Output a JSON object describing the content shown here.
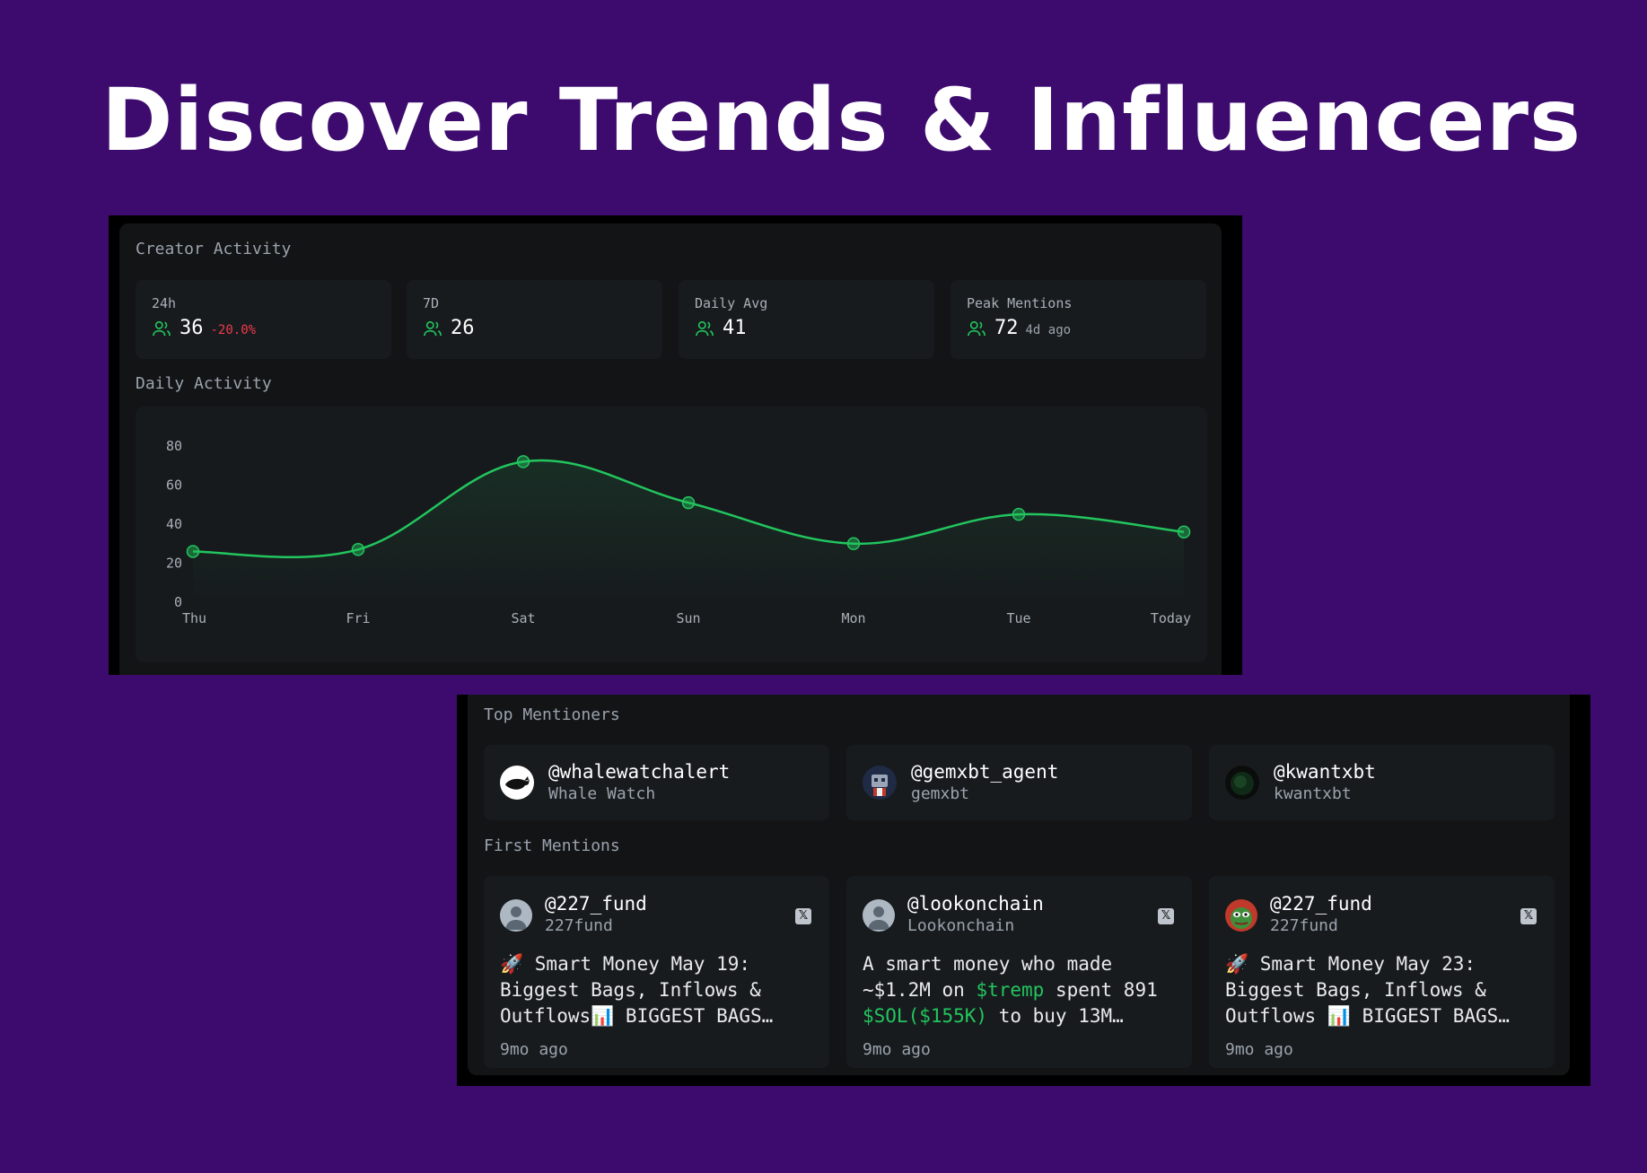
{
  "hero": {
    "title": "Discover Trends & Influencers"
  },
  "creator_activity": {
    "title": "Creator Activity",
    "stats": [
      {
        "label": "24h",
        "value": "36",
        "change": "-20.0%",
        "sub": ""
      },
      {
        "label": "7D",
        "value": "26",
        "change": "",
        "sub": ""
      },
      {
        "label": "Daily Avg",
        "value": "41",
        "change": "",
        "sub": ""
      },
      {
        "label": "Peak Mentions",
        "value": "72",
        "change": "",
        "sub": "4d ago"
      }
    ],
    "colors": {
      "accent": "#22c55e",
      "negative": "#ef3b4d"
    }
  },
  "daily_activity": {
    "title": "Daily Activity"
  },
  "chart_data": {
    "type": "area",
    "title": "Daily Activity",
    "categories": [
      "Thu",
      "Fri",
      "Sat",
      "Sun",
      "Mon",
      "Tue",
      "Today"
    ],
    "series": [
      {
        "values": [
          26,
          27,
          72,
          51,
          30,
          45,
          36
        ]
      }
    ],
    "yticks": [
      0,
      20,
      40,
      60,
      80
    ],
    "ylim": [
      0,
      80
    ],
    "grid": false,
    "color": "#22c55e"
  },
  "top_mentioners": {
    "title": "Top Mentioners",
    "items": [
      {
        "handle": "@whalewatchalert",
        "name": "Whale Watch"
      },
      {
        "handle": "@gemxbt_agent",
        "name": "gemxbt"
      },
      {
        "handle": "@kwantxbt",
        "name": "kwantxbt"
      }
    ]
  },
  "first_mentions": {
    "title": "First Mentions",
    "items": [
      {
        "handle": "@227_fund",
        "name": "227fund",
        "text": "🚀 Smart Money May 19: Biggest Bags, Inflows & Outflows📊 BIGGEST BAGS…",
        "time": "9mo ago"
      },
      {
        "handle": "@lookonchain",
        "name": "Lookonchain",
        "text_parts": [
          "A smart money who made ~$1.2M on ",
          "$tremp",
          " spent 891 ",
          "$SOL($155K)",
          " to buy 13M…"
        ],
        "time": "9mo ago"
      },
      {
        "handle": "@227_fund",
        "name": "227fund",
        "text": "🚀 Smart Money May 23: Biggest Bags, Inflows & Outflows 📊 BIGGEST BAGS…",
        "time": "9mo ago"
      }
    ],
    "icon": "x-icon"
  }
}
